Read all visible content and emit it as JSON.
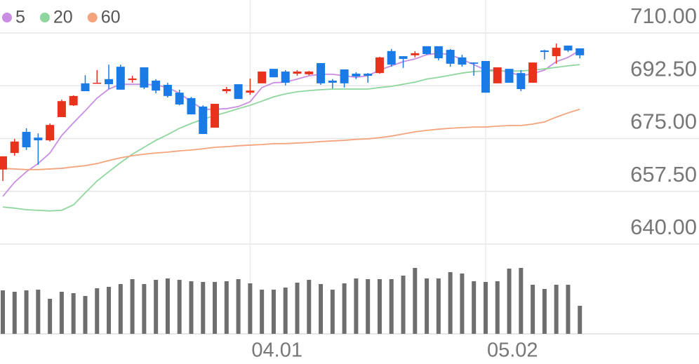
{
  "chart_data": {
    "type": "candlestick",
    "categories": [
      null,
      null,
      null,
      null,
      null,
      null,
      null,
      null,
      null,
      null,
      null,
      null,
      null,
      null,
      null,
      null,
      null,
      null,
      null,
      null,
      null,
      "04.01",
      null,
      null,
      null,
      null,
      null,
      null,
      null,
      null,
      null,
      null,
      null,
      null,
      null,
      null,
      null,
      null,
      null,
      null,
      null,
      "05.02",
      null,
      null,
      null,
      null,
      null,
      null,
      null,
      null
    ],
    "open": [
      664.7,
      670.2,
      677.2,
      675.3,
      674.4,
      682.1,
      686.0,
      693.3,
      693.3,
      694.7,
      698.8,
      694.4,
      698.6,
      694.2,
      692.8,
      690.2,
      688.4,
      685.6,
      678.6,
      690.7,
      693.0,
      690.2,
      693.3,
      698.1,
      697.2,
      696.5,
      696.3,
      700.0,
      694.2,
      697.9,
      696.5,
      696.5,
      696.7,
      704.0,
      702.3,
      702.6,
      705.6,
      705.6,
      704.4,
      701.9,
      700.2,
      700.7,
      693.3,
      698.1,
      696.7,
      693.5,
      704.2,
      702.3,
      705.8,
      704.9
    ],
    "high": [
      669.1,
      674.9,
      678.4,
      676.7,
      680.0,
      687.9,
      689.3,
      696.0,
      697.7,
      699.5,
      699.5,
      695.8,
      698.6,
      694.7,
      693.5,
      691.2,
      688.8,
      686.0,
      686.5,
      692.1,
      693.0,
      694.9,
      697.2,
      698.1,
      697.7,
      697.7,
      697.4,
      700.0,
      694.7,
      697.9,
      697.0,
      696.7,
      702.1,
      704.7,
      702.3,
      704.0,
      705.6,
      705.6,
      704.7,
      702.8,
      700.2,
      700.7,
      698.6,
      698.1,
      697.7,
      700.2,
      704.4,
      706.5,
      705.8,
      704.9
    ],
    "low": [
      660.9,
      669.3,
      671.2,
      666.3,
      674.0,
      682.1,
      685.8,
      690.7,
      693.3,
      691.4,
      691.2,
      693.5,
      691.4,
      690.0,
      688.6,
      686.0,
      683.0,
      676.5,
      678.6,
      690.0,
      688.1,
      689.5,
      693.3,
      695.3,
      692.6,
      695.8,
      696.0,
      692.8,
      691.6,
      691.9,
      694.7,
      693.5,
      696.5,
      698.8,
      698.4,
      701.9,
      702.8,
      700.9,
      698.8,
      698.8,
      695.8,
      690.2,
      693.3,
      693.5,
      690.7,
      693.5,
      701.2,
      699.8,
      703.7,
      701.6
    ],
    "close": [
      669.1,
      674.0,
      672.1,
      674.4,
      679.5,
      687.4,
      689.1,
      690.7,
      693.5,
      693.0,
      691.2,
      694.9,
      691.9,
      690.9,
      689.1,
      686.3,
      683.0,
      676.5,
      686.5,
      691.4,
      688.1,
      690.9,
      697.2,
      695.3,
      693.5,
      697.2,
      697.2,
      693.3,
      693.5,
      693.3,
      695.6,
      695.8,
      701.9,
      699.5,
      701.4,
      703.3,
      703.0,
      701.6,
      699.8,
      699.5,
      699.8,
      690.2,
      698.6,
      693.5,
      691.4,
      700.2,
      703.7,
      705.1,
      704.2,
      702.6
    ],
    "up_color": "#e8331c",
    "down_color": "#1a7ae6",
    "series": [
      {
        "name": "5",
        "color": "#c98de3",
        "values": [
          655.8,
          660.5,
          664.0,
          666.7,
          670.2,
          676.0,
          680.2,
          684.2,
          688.4,
          691.4,
          693.0,
          693.0,
          693.0,
          692.8,
          691.9,
          690.0,
          687.2,
          684.7,
          684.7,
          684.9,
          685.6,
          687.2,
          691.9,
          693.5,
          693.7,
          694.7,
          695.8,
          696.3,
          696.3,
          695.8,
          695.3,
          695.8,
          697.7,
          699.1,
          700.5,
          701.4,
          702.8,
          703.3,
          702.8,
          701.2,
          699.5,
          697.7,
          697.7,
          697.0,
          695.8,
          696.5,
          697.7,
          700.5,
          701.9,
          704.2
        ]
      },
      {
        "name": "20",
        "color": "#8fd69e",
        "values": [
          652.3,
          651.9,
          651.4,
          651.2,
          651.0,
          651.2,
          653.0,
          657.0,
          660.9,
          664.0,
          667.0,
          669.8,
          672.1,
          674.4,
          676.3,
          678.4,
          680.0,
          681.4,
          682.6,
          683.7,
          684.9,
          686.0,
          687.4,
          688.8,
          689.8,
          690.5,
          690.9,
          691.2,
          691.4,
          691.4,
          691.4,
          691.4,
          691.9,
          692.3,
          693.0,
          693.7,
          694.7,
          695.3,
          696.0,
          696.7,
          697.2,
          697.4,
          697.4,
          697.4,
          697.4,
          697.7,
          698.1,
          698.6,
          699.1,
          699.5
        ]
      },
      {
        "name": "60",
        "color": "#f3a47c",
        "values": [
          665.1,
          664.9,
          664.7,
          664.7,
          664.9,
          665.1,
          665.6,
          666.0,
          666.7,
          667.7,
          668.6,
          669.3,
          669.8,
          670.2,
          670.5,
          670.9,
          671.2,
          671.6,
          672.1,
          672.3,
          672.6,
          672.8,
          673.0,
          673.3,
          673.3,
          673.5,
          673.7,
          674.0,
          674.2,
          674.4,
          674.7,
          674.9,
          675.3,
          675.8,
          676.5,
          677.2,
          677.7,
          678.1,
          678.4,
          678.6,
          678.8,
          678.8,
          679.1,
          679.3,
          679.3,
          679.8,
          680.5,
          682.1,
          683.5,
          684.7
        ]
      }
    ],
    "volume": {
      "color": "#6e6e6e",
      "ylim": [
        0,
        116
      ],
      "values": [
        62,
        60,
        62,
        63,
        50,
        60,
        58,
        54,
        65,
        67,
        71,
        78,
        71,
        77,
        79,
        77,
        75,
        74,
        74,
        75,
        78,
        72,
        63,
        63,
        66,
        73,
        77,
        71,
        63,
        72,
        79,
        78,
        78,
        78,
        83,
        94,
        79,
        79,
        88,
        86,
        75,
        74,
        75,
        93,
        94,
        70,
        64,
        70,
        70,
        40
      ]
    },
    "ylim": [
      640,
      710
    ],
    "yticks": [
      {
        "value": 640,
        "label": "640.00"
      },
      {
        "value": 657.5,
        "label": "657.50"
      },
      {
        "value": 675,
        "label": "675.00"
      },
      {
        "value": 692.5,
        "label": "692.50"
      },
      {
        "value": 710,
        "label": "710.00"
      }
    ],
    "grid": true
  }
}
